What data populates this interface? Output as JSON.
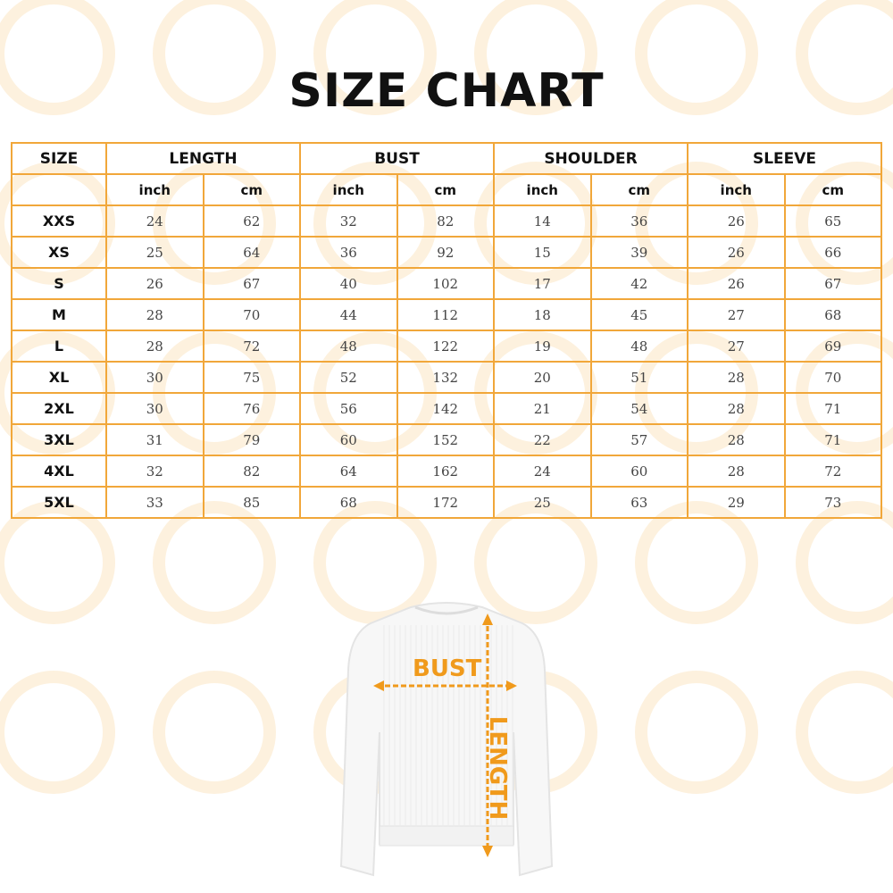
{
  "title": "SIZE CHART",
  "colors": {
    "border": "#f1a73a",
    "accent": "#f09a1c",
    "watermark": "#fdf1de"
  },
  "table": {
    "size_header": "SIZE",
    "groups": [
      "LENGTH",
      "BUST",
      "SHOULDER",
      "SLEEVE"
    ],
    "units": [
      "inch",
      "cm"
    ],
    "rows": [
      {
        "size": "XXS",
        "values": [
          "24",
          "62",
          "32",
          "82",
          "14",
          "36",
          "26",
          "65"
        ]
      },
      {
        "size": "XS",
        "values": [
          "25",
          "64",
          "36",
          "92",
          "15",
          "39",
          "26",
          "66"
        ]
      },
      {
        "size": "S",
        "values": [
          "26",
          "67",
          "40",
          "102",
          "17",
          "42",
          "26",
          "67"
        ]
      },
      {
        "size": "M",
        "values": [
          "28",
          "70",
          "44",
          "112",
          "18",
          "45",
          "27",
          "68"
        ]
      },
      {
        "size": "L",
        "values": [
          "28",
          "72",
          "48",
          "122",
          "19",
          "48",
          "27",
          "69"
        ]
      },
      {
        "size": "XL",
        "values": [
          "30",
          "75",
          "52",
          "132",
          "20",
          "51",
          "28",
          "70"
        ]
      },
      {
        "size": "2XL",
        "values": [
          "30",
          "76",
          "56",
          "142",
          "21",
          "54",
          "28",
          "71"
        ]
      },
      {
        "size": "3XL",
        "values": [
          "31",
          "79",
          "60",
          "152",
          "22",
          "57",
          "28",
          "71"
        ]
      },
      {
        "size": "4XL",
        "values": [
          "32",
          "82",
          "64",
          "162",
          "24",
          "60",
          "28",
          "72"
        ]
      },
      {
        "size": "5XL",
        "values": [
          "33",
          "85",
          "68",
          "172",
          "25",
          "63",
          "29",
          "73"
        ]
      }
    ]
  },
  "diagram": {
    "bust_label": "BUST",
    "length_label": "LENGTH"
  }
}
